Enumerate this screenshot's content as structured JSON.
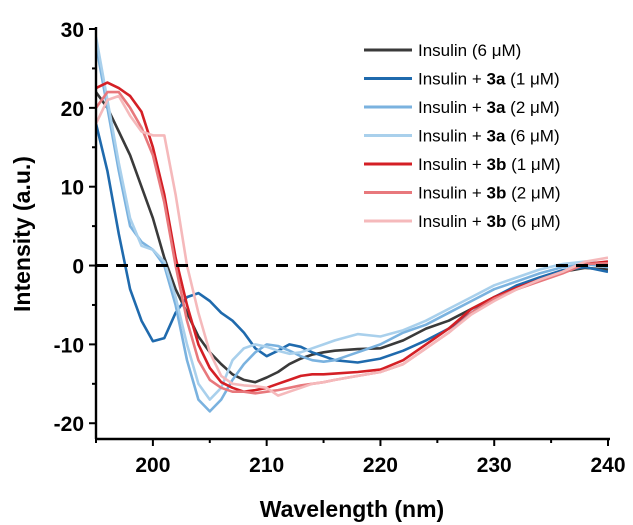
{
  "chart_data": {
    "type": "line",
    "xlabel": "Wavelength (nm)",
    "ylabel": "Intensity (a.u.)",
    "xlim": [
      195,
      240
    ],
    "ylim": [
      -22,
      30
    ],
    "xticks": [
      200,
      210,
      220,
      230,
      240
    ],
    "yticks": [
      30,
      20,
      10,
      0,
      -10,
      -20
    ],
    "xtick_labels": [
      "200",
      "210",
      "220",
      "230",
      "240"
    ],
    "ytick_labels": [
      "30",
      "20",
      "10",
      "0",
      "-10",
      "-20"
    ],
    "zero_line": true,
    "grid": false,
    "legend_position": "top-right",
    "series": [
      {
        "name": "Insulin (6 μM)",
        "legend": {
          "prefix": "Insulin",
          "compound": "",
          "conc": "(6 μM)"
        },
        "color": "#3a3a3a",
        "x": [
          195,
          196,
          197,
          198,
          199,
          200,
          201,
          202,
          203,
          204,
          205,
          206,
          207,
          208,
          209,
          210,
          211,
          212,
          213,
          214,
          215,
          216,
          218,
          220,
          222,
          224,
          226,
          228,
          230,
          232,
          234,
          236,
          238,
          240
        ],
        "y": [
          22,
          20,
          17,
          14,
          10,
          6,
          1,
          -3,
          -6,
          -9,
          -11,
          -12.5,
          -13.8,
          -14.5,
          -14.8,
          -14.2,
          -13.5,
          -12.5,
          -11.8,
          -11.3,
          -11,
          -10.8,
          -10.6,
          -10.5,
          -9.5,
          -8,
          -7,
          -5.5,
          -4,
          -3,
          -1.8,
          -0.8,
          -0.3,
          -0.5
        ]
      },
      {
        "name": "Insulin + 3a (1 μM)",
        "legend": {
          "prefix": "Insulin + ",
          "compound": "3a",
          "conc": "(1 μM)"
        },
        "color": "#1f6aad",
        "x": [
          195,
          196,
          197,
          198,
          199,
          200,
          201,
          202,
          203,
          204,
          205,
          206,
          207,
          208,
          209,
          210,
          211,
          212,
          213,
          214,
          215,
          216,
          218,
          220,
          222,
          224,
          226,
          228,
          230,
          232,
          234,
          236,
          238,
          240
        ],
        "y": [
          18,
          12,
          4,
          -3,
          -7,
          -9.6,
          -9.2,
          -6,
          -4,
          -3.5,
          -4.5,
          -6,
          -7,
          -8.5,
          -10.5,
          -11.5,
          -10.8,
          -10,
          -10.3,
          -11,
          -11.5,
          -12,
          -12.3,
          -11.8,
          -10.8,
          -9.5,
          -8,
          -6,
          -4,
          -2.5,
          -1.5,
          -0.6,
          -0.2,
          -0.8
        ]
      },
      {
        "name": "Insulin + 3a (2 μM)",
        "legend": {
          "prefix": "Insulin + ",
          "compound": "3a",
          "conc": "(2 μM)"
        },
        "color": "#7ab2df",
        "x": [
          195,
          196,
          197,
          198,
          199,
          200,
          201,
          202,
          203,
          204,
          205,
          206,
          207,
          208,
          209,
          210,
          211,
          212,
          213,
          214,
          215,
          216,
          218,
          220,
          222,
          224,
          226,
          228,
          230,
          232,
          234,
          236,
          238,
          240
        ],
        "y": [
          28,
          20,
          12,
          5,
          3,
          2,
          0,
          -5,
          -12,
          -17,
          -18.5,
          -17,
          -14.5,
          -12.5,
          -11,
          -10,
          -10.2,
          -10.8,
          -11.5,
          -12,
          -12.2,
          -12,
          -11,
          -10,
          -8.5,
          -7.5,
          -6,
          -4.5,
          -3,
          -2,
          -1,
          -0.2,
          0.2,
          -0.2
        ]
      },
      {
        "name": "Insulin + 3a (6 μM)",
        "legend": {
          "prefix": "Insulin + ",
          "compound": "3a",
          "conc": "(6 μM)"
        },
        "color": "#a9d0ec",
        "x": [
          195,
          196,
          197,
          198,
          199,
          200,
          201,
          202,
          203,
          204,
          205,
          206,
          207,
          208,
          209,
          210,
          211,
          212,
          213,
          214,
          215,
          216,
          218,
          220,
          222,
          224,
          226,
          228,
          230,
          232,
          234,
          236,
          238,
          240
        ],
        "y": [
          29,
          21,
          13,
          6,
          2.5,
          2,
          0.5,
          -4,
          -10,
          -15,
          -17,
          -15.5,
          -12,
          -10.5,
          -10,
          -10.3,
          -10.8,
          -11.2,
          -11,
          -10.5,
          -10,
          -9.5,
          -8.7,
          -9,
          -8.2,
          -7,
          -5.5,
          -4,
          -2.5,
          -1.5,
          -0.5,
          0.2,
          0.5,
          0.2
        ]
      },
      {
        "name": "Insulin + 3b (1 μM)",
        "legend": {
          "prefix": "Insulin + ",
          "compound": "3b",
          "conc": "(1 μM)"
        },
        "color": "#d41f25",
        "x": [
          195,
          196,
          197,
          198,
          199,
          200,
          201,
          202,
          203,
          204,
          205,
          206,
          207,
          208,
          209,
          210,
          211,
          212,
          213,
          214,
          215,
          216,
          218,
          220,
          222,
          224,
          226,
          228,
          230,
          232,
          234,
          236,
          238,
          240
        ],
        "y": [
          22.5,
          23.2,
          22.5,
          21.5,
          19.5,
          15,
          9,
          1,
          -5,
          -10,
          -13,
          -14.8,
          -15.5,
          -16,
          -15.8,
          -15.5,
          -15,
          -14.5,
          -14,
          -13.8,
          -13.8,
          -13.7,
          -13.5,
          -13.2,
          -12,
          -10,
          -8,
          -5.5,
          -4,
          -2.8,
          -1.8,
          -0.8,
          0.2,
          0.5
        ]
      },
      {
        "name": "Insulin + 3b (2 μM)",
        "legend": {
          "prefix": "Insulin + ",
          "compound": "3b",
          "conc": "(2 μM)"
        },
        "color": "#e8787c",
        "x": [
          195,
          196,
          197,
          198,
          199,
          200,
          201,
          202,
          203,
          204,
          205,
          206,
          207,
          208,
          209,
          210,
          211,
          212,
          213,
          214,
          215,
          216,
          218,
          220,
          222,
          224,
          226,
          228,
          230,
          232,
          234,
          236,
          238,
          240
        ],
        "y": [
          20,
          22,
          22,
          20,
          17.5,
          14,
          8,
          0,
          -7,
          -12,
          -14.5,
          -15.5,
          -16,
          -16,
          -16.2,
          -16,
          -15.8,
          -15.5,
          -15.2,
          -15,
          -14.8,
          -14.5,
          -14,
          -13.5,
          -12.5,
          -10.5,
          -8.5,
          -6,
          -4.2,
          -3,
          -2,
          -1,
          0.2,
          0.3
        ]
      },
      {
        "name": "Insulin + 3b (6 μM)",
        "legend": {
          "prefix": "Insulin + ",
          "compound": "3b",
          "conc": "(6 μM)"
        },
        "color": "#f5b9bb",
        "x": [
          195,
          196,
          197,
          198,
          199,
          200,
          201,
          202,
          203,
          204,
          205,
          206,
          207,
          208,
          209,
          210,
          211,
          212,
          213,
          214,
          215,
          216,
          218,
          220,
          222,
          224,
          226,
          228,
          230,
          232,
          234,
          236,
          238,
          240
        ],
        "y": [
          18,
          21,
          21.5,
          19,
          17,
          16.5,
          16.5,
          9,
          0,
          -6,
          -11,
          -14,
          -15,
          -15.2,
          -15.3,
          -15.5,
          -16.5,
          -16,
          -15.5,
          -15,
          -14.8,
          -14.5,
          -14,
          -13.5,
          -12.5,
          -10.5,
          -8.5,
          -6.2,
          -4.5,
          -3,
          -1.8,
          -0.8,
          0.5,
          1
        ]
      }
    ]
  }
}
